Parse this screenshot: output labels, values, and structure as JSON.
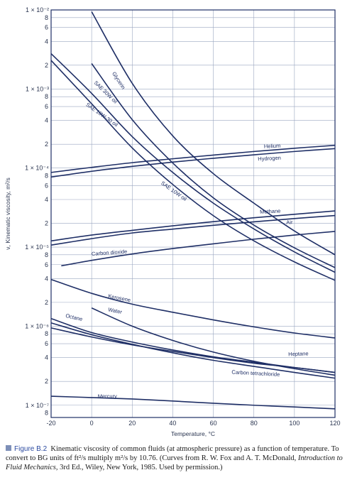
{
  "chart_data": {
    "type": "line",
    "title": "",
    "xlabel": "Temperature, °C",
    "ylabel": "ν, Kinematic viscosity, m²/s",
    "xlim": [
      -20,
      120
    ],
    "ylim": [
      7e-08,
      0.01
    ],
    "y_scale": "log",
    "grid": true,
    "x_ticks": [
      "-20",
      "0",
      "20",
      "40",
      "60",
      "80",
      "100",
      "120"
    ],
    "y_decade_labels": [
      "1 × 10⁻²",
      "1 × 10⁻³",
      "1 × 10⁻⁴",
      "1 × 10⁻⁵",
      "1 × 10⁻⁶",
      "1 × 10⁻⁷"
    ],
    "y_minor_labels": [
      "8",
      "6",
      "4",
      "2"
    ],
    "series": [
      {
        "name": "Glycerin",
        "x": [
          0,
          20,
          40,
          60,
          80,
          100,
          120
        ],
        "y": [
          0.0095,
          0.00118,
          0.000255,
          8.5e-05,
          3.6e-05,
          1.6e-05,
          8e-06
        ]
      },
      {
        "name": "SAE 30W oil",
        "x": [
          0,
          20,
          40,
          60,
          80,
          100,
          120
        ],
        "y": [
          0.0021,
          0.00041,
          0.000116,
          4.2e-05,
          1.9e-05,
          9.8e-06,
          5.5e-06
        ]
      },
      {
        "name": "SAE 10W-30 oil",
        "x": [
          -20,
          0,
          20,
          40,
          60,
          80,
          100,
          120
        ],
        "y": [
          0.0028,
          0.00088,
          0.00025,
          8.8e-05,
          3.6e-05,
          1.7e-05,
          8.7e-06,
          4.8e-06
        ]
      },
      {
        "name": "SAE 10W oil",
        "x": [
          -20,
          0,
          20,
          40,
          60,
          80,
          100,
          120
        ],
        "y": [
          0.0023,
          0.00065,
          0.00018,
          6.2e-05,
          2.5e-05,
          1.2e-05,
          6.5e-06,
          3.8e-06
        ]
      },
      {
        "name": "Helium",
        "x": [
          -20,
          0,
          20,
          40,
          60,
          80,
          100,
          120
        ],
        "y": [
          8.8e-05,
          0.000102,
          0.000117,
          0.000131,
          0.000146,
          0.000162,
          0.000178,
          0.000194
        ]
      },
      {
        "name": "Hydrogen",
        "x": [
          -20,
          0,
          20,
          40,
          60,
          80,
          100,
          120
        ],
        "y": [
          7.7e-05,
          9.1e-05,
          0.000105,
          0.000119,
          0.000133,
          0.000147,
          0.000162,
          0.000176
        ]
      },
      {
        "name": "Methane",
        "x": [
          -20,
          0,
          20,
          40,
          60,
          80,
          100,
          120
        ],
        "y": [
          1.2e-05,
          1.42e-05,
          1.63e-05,
          1.86e-05,
          2.1e-05,
          2.35e-05,
          2.6e-05,
          2.87e-05
        ]
      },
      {
        "name": "Air",
        "x": [
          -20,
          0,
          20,
          40,
          60,
          80,
          100,
          120
        ],
        "y": [
          1.06e-05,
          1.28e-05,
          1.51e-05,
          1.69e-05,
          1.89e-05,
          2.09e-05,
          2.3e-05,
          2.51e-05
        ]
      },
      {
        "name": "Carbon dioxide",
        "x": [
          -15,
          0,
          20,
          40,
          60,
          80,
          100,
          120
        ],
        "y": [
          5.8e-06,
          6.8e-06,
          8.2e-06,
          9.6e-06,
          1.1e-05,
          1.26e-05,
          1.42e-05,
          1.58e-05
        ]
      },
      {
        "name": "Kerosene",
        "x": [
          -20,
          0,
          20,
          40,
          60,
          80,
          100,
          120
        ],
        "y": [
          3.9e-06,
          2.6e-06,
          1.9e-06,
          1.5e-06,
          1.2e-06,
          9.8e-07,
          8.2e-07,
          7.1e-07
        ]
      },
      {
        "name": "Water",
        "x": [
          0,
          20,
          40,
          60,
          80,
          100,
          120
        ],
        "y": [
          1.7e-06,
          1e-06,
          6.6e-07,
          4.7e-07,
          3.6e-07,
          2.9e-07,
          2.4e-07
        ]
      },
      {
        "name": "Octane",
        "x": [
          -20,
          0,
          20,
          40,
          60,
          80,
          100,
          120
        ],
        "y": [
          1.25e-06,
          8.3e-07,
          6.3e-07,
          5e-07,
          4.1e-07,
          3.5e-07,
          3e-07,
          2.6e-07
        ]
      },
      {
        "name": "Heptane",
        "x": [
          -20,
          0,
          20,
          40,
          60,
          80,
          100,
          120
        ],
        "y": [
          9.5e-07,
          7.3e-07,
          5.8e-07,
          4.8e-07,
          4e-07,
          3.4e-07,
          3e-07,
          2.6e-07
        ]
      },
      {
        "name": "Carbon tetrachloride",
        "x": [
          -20,
          0,
          20,
          40,
          60,
          80,
          100,
          120
        ],
        "y": [
          1.1e-06,
          7.8e-07,
          5.9e-07,
          4.6e-07,
          3.7e-07,
          3.1e-07,
          2.6e-07,
          2.2e-07
        ]
      },
      {
        "name": "Mercury",
        "x": [
          -20,
          0,
          20,
          40,
          60,
          80,
          100,
          120
        ],
        "y": [
          1.3e-07,
          1.25e-07,
          1.2e-07,
          1.13e-07,
          1.06e-07,
          1e-07,
          9.5e-08,
          9e-08
        ]
      }
    ],
    "curve_labels": [
      {
        "series": "Glycerin",
        "text": "Glycerin",
        "at_x": 10,
        "at_y": 0.00158,
        "angle": 57
      },
      {
        "series": "SAE 30W oil",
        "text": "SAE 30W oil",
        "at_x": 1,
        "at_y": 0.00119,
        "angle": 44
      },
      {
        "series": "SAE 10W-30 oil",
        "text": "SAE 10W-30 oil",
        "at_x": -3,
        "at_y": 0.00062,
        "angle": 35
      },
      {
        "series": "SAE 10W oil",
        "text": "SAE 10W oil",
        "at_x": 34,
        "at_y": 6.3e-05,
        "angle": 35
      },
      {
        "series": "Helium",
        "text": "Helium",
        "at_x": 85,
        "at_y": 0.000178,
        "angle": -3
      },
      {
        "series": "Hydrogen",
        "text": "Hydrogen",
        "at_x": 82,
        "at_y": 0.000124,
        "angle": -3
      },
      {
        "series": "Methane",
        "text": "Methane",
        "at_x": 83,
        "at_y": 2.65e-05,
        "angle": -3
      },
      {
        "series": "Air",
        "text": "Air",
        "at_x": 96,
        "at_y": 1.95e-05,
        "angle": -3
      },
      {
        "series": "Carbon dioxide",
        "text": "Carbon dioxide",
        "at_x": 0,
        "at_y": 7.8e-06,
        "angle": -4
      },
      {
        "series": "Kerosene",
        "text": "Kerosene",
        "at_x": 8,
        "at_y": 2.3e-06,
        "angle": 11
      },
      {
        "series": "Water",
        "text": "Water",
        "at_x": 8,
        "at_y": 1.55e-06,
        "angle": 11
      },
      {
        "series": "Octane",
        "text": "Octane",
        "at_x": -13,
        "at_y": 1.3e-06,
        "angle": 13
      },
      {
        "series": "Heptane",
        "text": "Heptane",
        "at_x": 97,
        "at_y": 4.2e-07,
        "angle": -2
      },
      {
        "series": "Carbon tetrachloride",
        "text": "Carbon tetrachloride",
        "at_x": 69,
        "at_y": 2.5e-07,
        "angle": 3
      },
      {
        "series": "Mercury",
        "text": "Mercury",
        "at_x": 3,
        "at_y": 1.23e-07,
        "angle": 0
      }
    ]
  },
  "caption": {
    "figure_label": "Figure B.2",
    "text_1": "Kinematic viscosity of common fluids (at atmospheric pressure) as a function of temperature. To convert to BG units of ft²/s multiply m²/s by 10.76. (Curves from R. W. Fox and A. T. McDonald, ",
    "book_title": "Introduction to Fluid Mechanics",
    "text_2": ", 3rd Ed., Wiley, New York, 1985. Used by permission.)"
  },
  "colors": {
    "line": "#1f2f66",
    "grid": "#9aa6c0",
    "figure_label": "#2b4aa0"
  }
}
